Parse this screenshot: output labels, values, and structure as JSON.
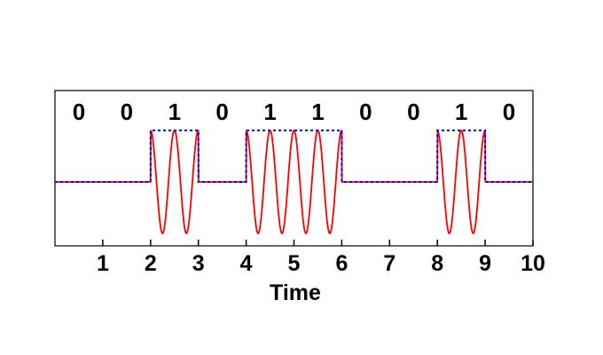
{
  "chart_data": {
    "type": "line",
    "title": "",
    "xlabel": "Time",
    "ylabel": "",
    "xlim": [
      0,
      10
    ],
    "ylim": [
      -1.1,
      1.1
    ],
    "x_ticks": [
      1,
      2,
      3,
      4,
      5,
      6,
      7,
      8,
      9,
      10
    ],
    "bits": [
      "0",
      "0",
      "1",
      "0",
      "1",
      "1",
      "0",
      "0",
      "1",
      "0"
    ],
    "grid": false,
    "legend": "none",
    "series": [
      {
        "kind": "square",
        "color": "#0000ff",
        "style": "dotted",
        "x": [
          0,
          2,
          2,
          3,
          3,
          4,
          4,
          6,
          6,
          8,
          8,
          9,
          9,
          10
        ],
        "y": [
          0,
          0,
          1,
          1,
          0,
          0,
          1,
          1,
          0,
          0,
          1,
          1,
          0,
          0
        ]
      },
      {
        "kind": "modulated-sine",
        "color": "#ff0000",
        "style": "solid",
        "cycles_per_unit": 2,
        "amplitude": 1
      }
    ]
  }
}
